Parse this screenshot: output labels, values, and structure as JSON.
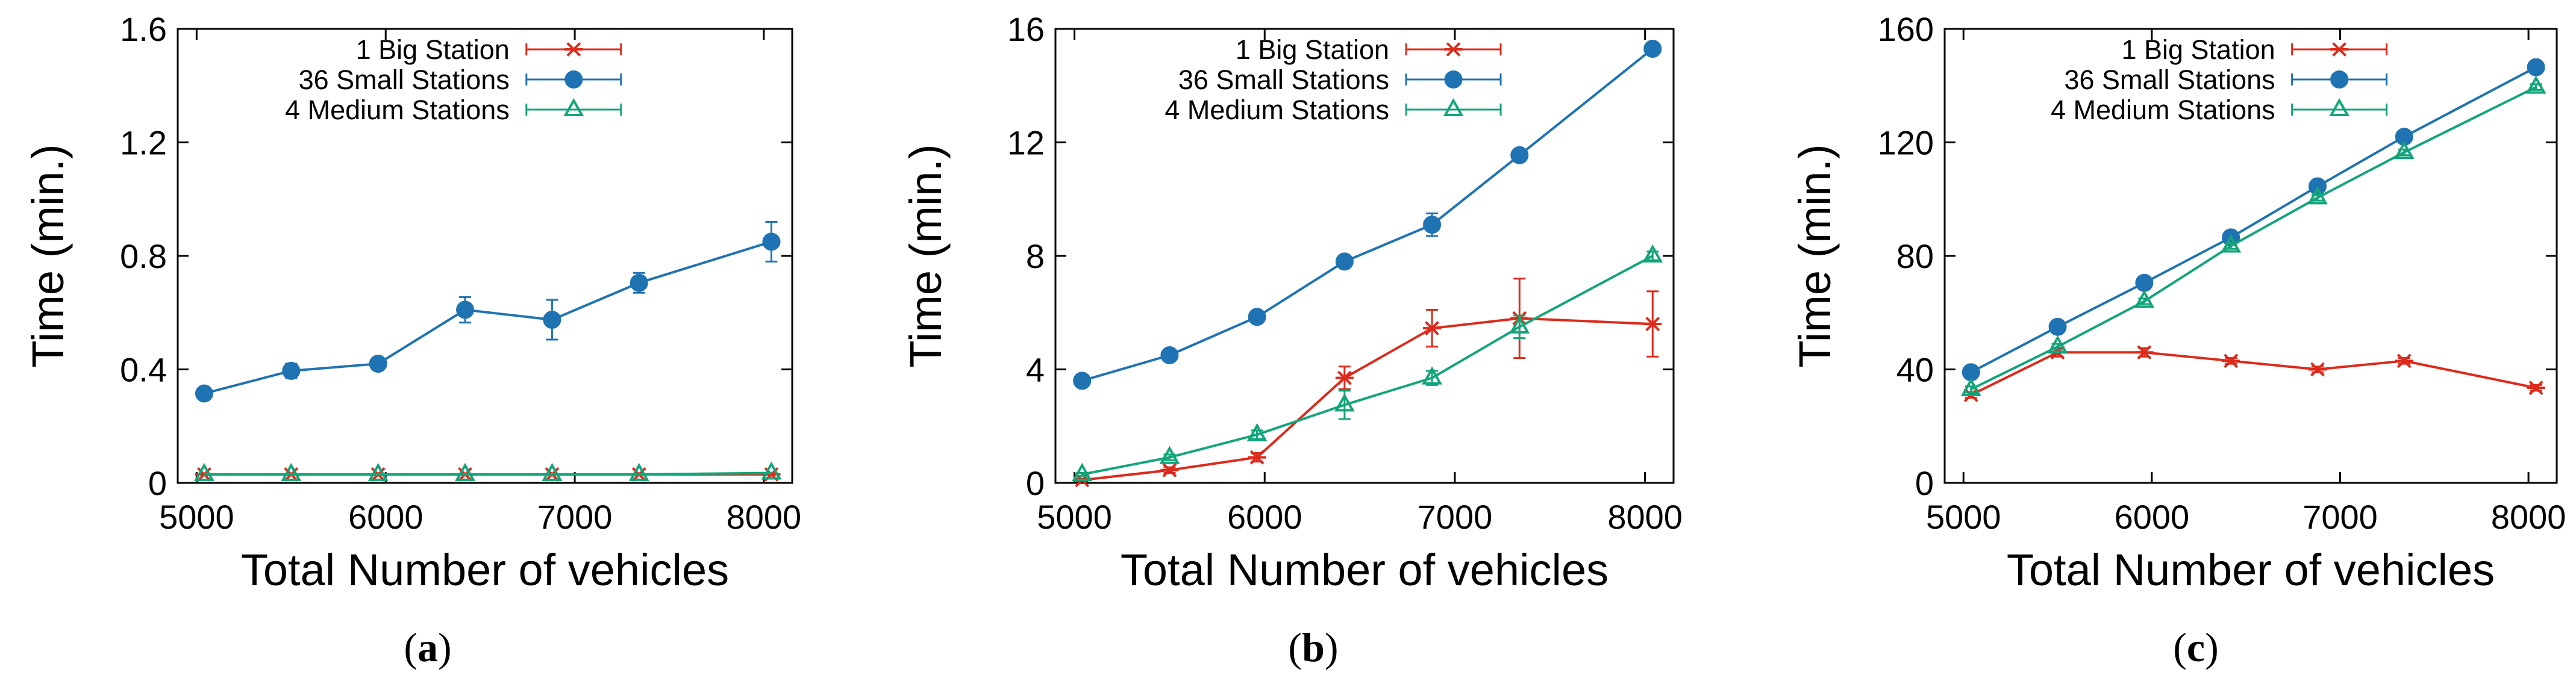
{
  "chart_data": [
    {
      "type": "line",
      "caption_label": "a",
      "xlabel": "Total Number of vehicles",
      "ylabel": "Time (min.)",
      "xlim": [
        4900,
        8150
      ],
      "ylim": [
        0,
        1.6
      ],
      "xticks": [
        5000,
        6000,
        7000,
        8000
      ],
      "xtick_labels": [
        "5000",
        "6000",
        "7000",
        "8000"
      ],
      "yticks": [
        0,
        0.4,
        0.8,
        1.2,
        1.6
      ],
      "ytick_labels": [
        "0",
        "0.4",
        "0.8",
        "1.2",
        "1.6"
      ],
      "grid": false,
      "legend": "top-center",
      "x": [
        5040,
        5500,
        5960,
        6420,
        6880,
        7340,
        8040
      ],
      "series": [
        {
          "name": "1 Big Station",
          "color": "#dd2a1b",
          "marker": "star",
          "values": [
            0.03,
            0.03,
            0.03,
            0.03,
            0.03,
            0.03,
            0.03
          ],
          "errors": [
            0,
            0,
            0,
            0,
            0,
            0,
            0
          ]
        },
        {
          "name": "36 Small Stations",
          "color": "#1f73b2",
          "marker": "circle",
          "values": [
            0.315,
            0.395,
            0.42,
            0.61,
            0.575,
            0.705,
            0.85
          ],
          "errors": [
            0.01,
            0.025,
            0.015,
            0.045,
            0.07,
            0.035,
            0.07
          ]
        },
        {
          "name": "4 Medium Stations",
          "color": "#12a57a",
          "marker": "triangle",
          "values": [
            0.03,
            0.03,
            0.03,
            0.03,
            0.03,
            0.03,
            0.035
          ],
          "errors": [
            0,
            0,
            0,
            0,
            0,
            0,
            0
          ]
        }
      ]
    },
    {
      "type": "line",
      "caption_label": "b",
      "xlabel": "Total Number of vehicles",
      "ylabel": "Time (min.)",
      "xlim": [
        4900,
        8150
      ],
      "ylim": [
        0,
        16
      ],
      "xticks": [
        5000,
        6000,
        7000,
        8000
      ],
      "xtick_labels": [
        "5000",
        "6000",
        "7000",
        "8000"
      ],
      "yticks": [
        0,
        4,
        8,
        12,
        16
      ],
      "ytick_labels": [
        "0",
        "4",
        "8",
        "12",
        "16"
      ],
      "grid": false,
      "legend": "top-center",
      "x": [
        5040,
        5500,
        5960,
        6420,
        6880,
        7340,
        8040
      ],
      "series": [
        {
          "name": "1 Big Station",
          "color": "#dd2a1b",
          "marker": "star",
          "values": [
            0.1,
            0.45,
            0.9,
            3.7,
            5.45,
            5.8,
            5.6
          ],
          "errors": [
            0.05,
            0.1,
            0.15,
            0.4,
            0.65,
            1.4,
            1.15
          ]
        },
        {
          "name": "36 Small Stations",
          "color": "#1f73b2",
          "marker": "circle",
          "values": [
            3.6,
            4.5,
            5.85,
            7.8,
            9.1,
            11.55,
            15.3
          ],
          "errors": [
            0.1,
            0.1,
            0.1,
            0.15,
            0.4,
            0.15,
            0.15
          ]
        },
        {
          "name": "4 Medium Stations",
          "color": "#12a57a",
          "marker": "triangle",
          "values": [
            0.3,
            0.9,
            1.7,
            2.75,
            3.7,
            5.5,
            8.0
          ],
          "errors": [
            0.05,
            0.1,
            0.15,
            0.5,
            0.25,
            0.4,
            0.15
          ]
        }
      ]
    },
    {
      "type": "line",
      "caption_label": "c",
      "xlabel": "Total Number of vehicles",
      "ylabel": "Time (min.)",
      "xlim": [
        4900,
        8150
      ],
      "ylim": [
        0,
        160
      ],
      "xticks": [
        5000,
        6000,
        7000,
        8000
      ],
      "xtick_labels": [
        "5000",
        "6000",
        "7000",
        "8000"
      ],
      "yticks": [
        0,
        40,
        80,
        120,
        160
      ],
      "ytick_labels": [
        "0",
        "40",
        "80",
        "120",
        "160"
      ],
      "grid": false,
      "legend": "top-center",
      "x": [
        5040,
        5500,
        5960,
        6420,
        6880,
        7340,
        8040
      ],
      "series": [
        {
          "name": "1 Big Station",
          "color": "#dd2a1b",
          "marker": "star",
          "values": [
            31,
            46,
            46,
            43,
            40,
            43,
            33.5
          ],
          "errors": [
            1,
            1.5,
            1.5,
            1,
            1,
            1,
            1
          ]
        },
        {
          "name": "36 Small Stations",
          "color": "#1f73b2",
          "marker": "circle",
          "values": [
            39,
            55,
            70.5,
            86.5,
            104.5,
            122,
            146.5
          ],
          "errors": [
            1,
            1,
            1,
            1,
            1,
            1,
            1
          ]
        },
        {
          "name": "4 Medium Stations",
          "color": "#12a57a",
          "marker": "triangle",
          "values": [
            33,
            48,
            64,
            83.5,
            100.5,
            116.5,
            139.5
          ],
          "errors": [
            1,
            1,
            1,
            1,
            1,
            1,
            1
          ]
        }
      ]
    }
  ]
}
